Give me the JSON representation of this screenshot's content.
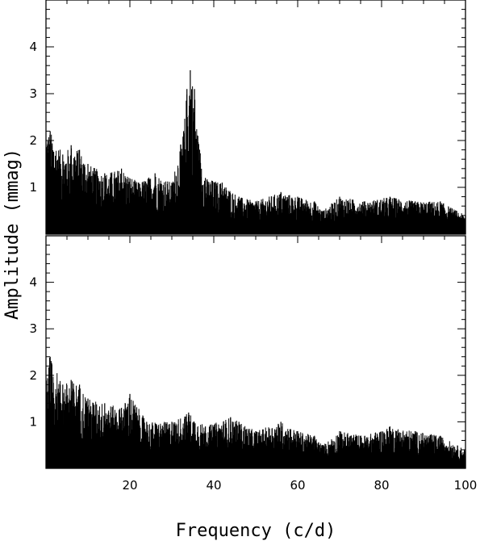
{
  "chart_data": [
    {
      "type": "line",
      "panel": "top",
      "xlim": [
        0,
        100
      ],
      "ylim": [
        0,
        5
      ],
      "xticks": [
        20,
        40,
        60,
        80,
        100
      ],
      "yticks": [
        1,
        2,
        3,
        4
      ],
      "xtick_labels_shown": false,
      "xlabel": "",
      "ylabel": "",
      "series": [
        {
          "x": [
            1,
            4,
            6,
            8,
            10,
            14,
            18,
            22,
            26,
            30,
            32.8,
            33.6,
            34.4,
            35.4,
            36.2,
            38,
            42,
            46,
            50,
            56,
            60,
            64,
            66,
            70,
            76,
            82,
            88,
            94,
            100
          ],
          "y": [
            2.2,
            1.7,
            1.9,
            1.8,
            1.5,
            1.3,
            1.4,
            1.1,
            1.3,
            1.1,
            2.2,
            3.1,
            3.5,
            3.1,
            2.1,
            1.2,
            1.1,
            0.8,
            0.7,
            0.9,
            0.8,
            0.7,
            0.5,
            0.8,
            0.7,
            0.8,
            0.7,
            0.7,
            0.4
          ]
        }
      ]
    },
    {
      "type": "line",
      "panel": "bottom",
      "xlim": [
        0,
        100
      ],
      "ylim": [
        0,
        5
      ],
      "xticks": [
        20,
        40,
        60,
        80,
        100
      ],
      "yticks": [
        1,
        2,
        3,
        4
      ],
      "xtick_labels": [
        "20",
        "40",
        "60",
        "80",
        "100"
      ],
      "ytick_labels": [
        "1",
        "2",
        "3",
        "4"
      ],
      "xlabel": "Frequency (c/d)",
      "ylabel": "Amplitude (mmag)",
      "series": [
        {
          "x": [
            1,
            4,
            6,
            8,
            10,
            14,
            18,
            20,
            24,
            30,
            34,
            38,
            44,
            46,
            50,
            56,
            60,
            64,
            66,
            70,
            76,
            82,
            88,
            94,
            100
          ],
          "y": [
            2.4,
            1.8,
            1.9,
            1.8,
            1.5,
            1.4,
            1.3,
            1.6,
            1.0,
            1.0,
            1.2,
            0.9,
            1.1,
            1.0,
            0.8,
            1.0,
            0.8,
            0.7,
            0.5,
            0.8,
            0.7,
            0.9,
            0.8,
            0.7,
            0.4
          ]
        }
      ]
    }
  ]
}
